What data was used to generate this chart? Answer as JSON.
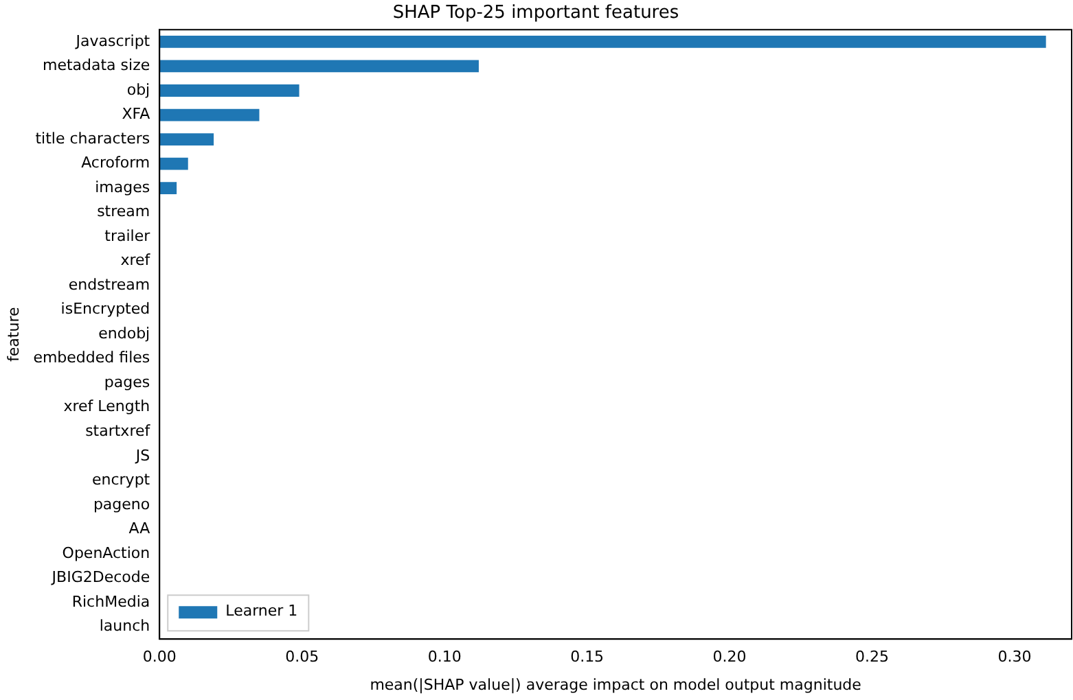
{
  "chart_data": {
    "type": "bar",
    "orientation": "horizontal",
    "title": "SHAP Top-25 important features",
    "xlabel": "mean(|SHAP value|) average impact on model output magnitude",
    "ylabel": "feature",
    "categories": [
      "Javascript",
      "metadata size",
      "obj",
      "XFA",
      "title characters",
      "Acroform",
      "images",
      "stream",
      "trailer",
      "xref",
      "endstream",
      "isEncrypted",
      "endobj",
      "embedded files",
      "pages",
      "xref Length",
      "startxref",
      "JS",
      "encrypt",
      "pageno",
      "AA",
      "OpenAction",
      "JBIG2Decode",
      "RichMedia",
      "launch"
    ],
    "series": [
      {
        "name": "Learner 1",
        "color": "#1f77b4",
        "values": [
          0.311,
          0.112,
          0.049,
          0.035,
          0.019,
          0.01,
          0.006,
          0,
          0,
          0,
          0,
          0,
          0,
          0,
          0,
          0,
          0,
          0,
          0,
          0,
          0,
          0,
          0,
          0,
          0
        ]
      }
    ],
    "xlim": [
      0,
      0.32
    ],
    "xticks": [
      {
        "value": 0,
        "label": "0.00"
      },
      {
        "value": 0.05,
        "label": "0.05"
      },
      {
        "value": 0.1,
        "label": "0.10"
      },
      {
        "value": 0.15,
        "label": "0.15"
      },
      {
        "value": 0.2,
        "label": "0.20"
      },
      {
        "value": 0.25,
        "label": "0.25"
      },
      {
        "value": 0.3,
        "label": "0.30"
      }
    ],
    "grid": false,
    "legend": "bottom left"
  }
}
